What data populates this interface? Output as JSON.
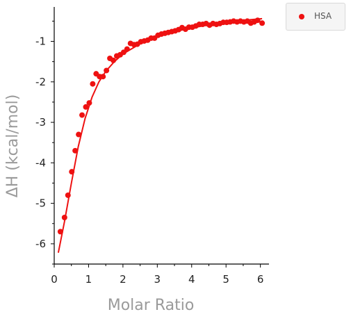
{
  "chart_data": {
    "type": "scatter",
    "xlabel": "Molar Ratio",
    "ylabel": "ΔH (kcal/mol)",
    "xlim": [
      0,
      6.25
    ],
    "ylim": [
      -6.5,
      -0.15
    ],
    "x_ticks": [
      0,
      1,
      2,
      3,
      4,
      5,
      6
    ],
    "x_tick_labels": [
      "0",
      "1",
      "2",
      "3",
      "4",
      "5",
      "6"
    ],
    "y_ticks": [
      -6,
      -5,
      -4,
      -3,
      -2,
      -1
    ],
    "y_tick_labels": [
      "-6",
      "-5",
      "-4",
      "-3",
      "-2",
      "-1"
    ],
    "grid": false,
    "legend_position": "top-right",
    "series": [
      {
        "name": "HSA",
        "color": "#ee1111",
        "points": [
          {
            "x": 0.18,
            "y": -5.7
          },
          {
            "x": 0.3,
            "y": -5.35
          },
          {
            "x": 0.4,
            "y": -4.8
          },
          {
            "x": 0.51,
            "y": -4.22
          },
          {
            "x": 0.61,
            "y": -3.7
          },
          {
            "x": 0.71,
            "y": -3.3
          },
          {
            "x": 0.81,
            "y": -2.82
          },
          {
            "x": 0.92,
            "y": -2.62
          },
          {
            "x": 1.02,
            "y": -2.52
          },
          {
            "x": 1.12,
            "y": -2.05
          },
          {
            "x": 1.22,
            "y": -1.8
          },
          {
            "x": 1.32,
            "y": -1.87
          },
          {
            "x": 1.42,
            "y": -1.87
          },
          {
            "x": 1.52,
            "y": -1.72
          },
          {
            "x": 1.62,
            "y": -1.42
          },
          {
            "x": 1.72,
            "y": -1.47
          },
          {
            "x": 1.82,
            "y": -1.36
          },
          {
            "x": 1.92,
            "y": -1.33
          },
          {
            "x": 2.02,
            "y": -1.27
          },
          {
            "x": 2.12,
            "y": -1.19
          },
          {
            "x": 2.22,
            "y": -1.05
          },
          {
            "x": 2.32,
            "y": -1.08
          },
          {
            "x": 2.42,
            "y": -1.07
          },
          {
            "x": 2.52,
            "y": -1.01
          },
          {
            "x": 2.62,
            "y": -0.99
          },
          {
            "x": 2.72,
            "y": -0.97
          },
          {
            "x": 2.82,
            "y": -0.92
          },
          {
            "x": 2.92,
            "y": -0.92
          },
          {
            "x": 3.02,
            "y": -0.85
          },
          {
            "x": 3.12,
            "y": -0.82
          },
          {
            "x": 3.22,
            "y": -0.8
          },
          {
            "x": 3.32,
            "y": -0.78
          },
          {
            "x": 3.42,
            "y": -0.76
          },
          {
            "x": 3.52,
            "y": -0.74
          },
          {
            "x": 3.62,
            "y": -0.71
          },
          {
            "x": 3.72,
            "y": -0.66
          },
          {
            "x": 3.82,
            "y": -0.7
          },
          {
            "x": 3.92,
            "y": -0.65
          },
          {
            "x": 4.02,
            "y": -0.65
          },
          {
            "x": 4.12,
            "y": -0.62
          },
          {
            "x": 4.22,
            "y": -0.58
          },
          {
            "x": 4.32,
            "y": -0.58
          },
          {
            "x": 4.42,
            "y": -0.56
          },
          {
            "x": 4.52,
            "y": -0.6
          },
          {
            "x": 4.62,
            "y": -0.56
          },
          {
            "x": 4.72,
            "y": -0.58
          },
          {
            "x": 4.82,
            "y": -0.56
          },
          {
            "x": 4.92,
            "y": -0.53
          },
          {
            "x": 5.02,
            "y": -0.53
          },
          {
            "x": 5.12,
            "y": -0.52
          },
          {
            "x": 5.22,
            "y": -0.5
          },
          {
            "x": 5.32,
            "y": -0.52
          },
          {
            "x": 5.42,
            "y": -0.5
          },
          {
            "x": 5.52,
            "y": -0.52
          },
          {
            "x": 5.62,
            "y": -0.5
          },
          {
            "x": 5.72,
            "y": -0.55
          },
          {
            "x": 5.82,
            "y": -0.52
          },
          {
            "x": 5.92,
            "y": -0.48
          },
          {
            "x": 6.05,
            "y": -0.55
          }
        ],
        "fit": [
          {
            "x": 0.12,
            "y": -6.22
          },
          {
            "x": 0.3,
            "y": -5.45
          },
          {
            "x": 0.5,
            "y": -4.5
          },
          {
            "x": 0.7,
            "y": -3.6
          },
          {
            "x": 0.9,
            "y": -2.9
          },
          {
            "x": 1.1,
            "y": -2.38
          },
          {
            "x": 1.3,
            "y": -2.0
          },
          {
            "x": 1.5,
            "y": -1.74
          },
          {
            "x": 1.75,
            "y": -1.5
          },
          {
            "x": 2.0,
            "y": -1.31
          },
          {
            "x": 2.5,
            "y": -1.06
          },
          {
            "x": 3.0,
            "y": -0.89
          },
          {
            "x": 3.5,
            "y": -0.76
          },
          {
            "x": 4.0,
            "y": -0.67
          },
          {
            "x": 4.5,
            "y": -0.59
          },
          {
            "x": 5.0,
            "y": -0.53
          },
          {
            "x": 5.5,
            "y": -0.48
          },
          {
            "x": 6.05,
            "y": -0.44
          }
        ]
      }
    ]
  },
  "legend": {
    "items": [
      {
        "label": "HSA",
        "color": "#ee1111"
      }
    ]
  }
}
